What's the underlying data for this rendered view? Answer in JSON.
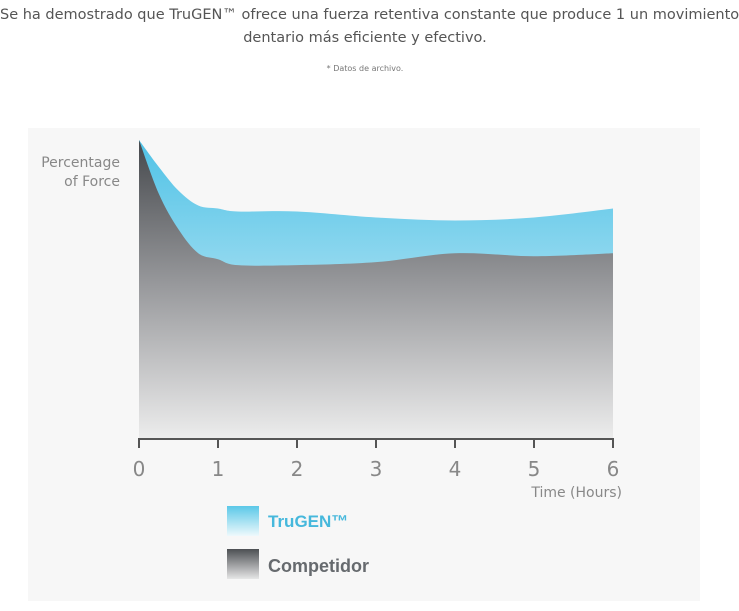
{
  "intro": {
    "line1": "Se ha demostrado que TruGEN™ ofrece una fuerza retentiva constante que produce 1 un movimiento",
    "line2": "dentario más eficiente y efectivo.",
    "note": "* Datos de archivo."
  },
  "chart_data": {
    "type": "area",
    "ylabel": [
      "Percentage",
      "of Force"
    ],
    "xlabel": "Time (Hours)",
    "x": [
      0,
      0.25,
      0.5,
      0.75,
      1,
      1.25,
      2,
      3,
      4,
      5,
      6
    ],
    "xticks": [
      "0",
      "1",
      "2",
      "3",
      "4",
      "5",
      "6"
    ],
    "ylim": [
      0,
      100
    ],
    "grid": false,
    "legend": "bottom",
    "series": [
      {
        "name": "TruGEN™",
        "color": "#5bc8e8",
        "values": [
          100,
          91,
          83,
          78,
          77,
          76,
          76,
          74,
          73,
          74,
          77
        ]
      },
      {
        "name": "Competidor",
        "color": "#55595e",
        "values": [
          100,
          82,
          70,
          62,
          60,
          58,
          58,
          59,
          62,
          61,
          62
        ]
      }
    ]
  }
}
